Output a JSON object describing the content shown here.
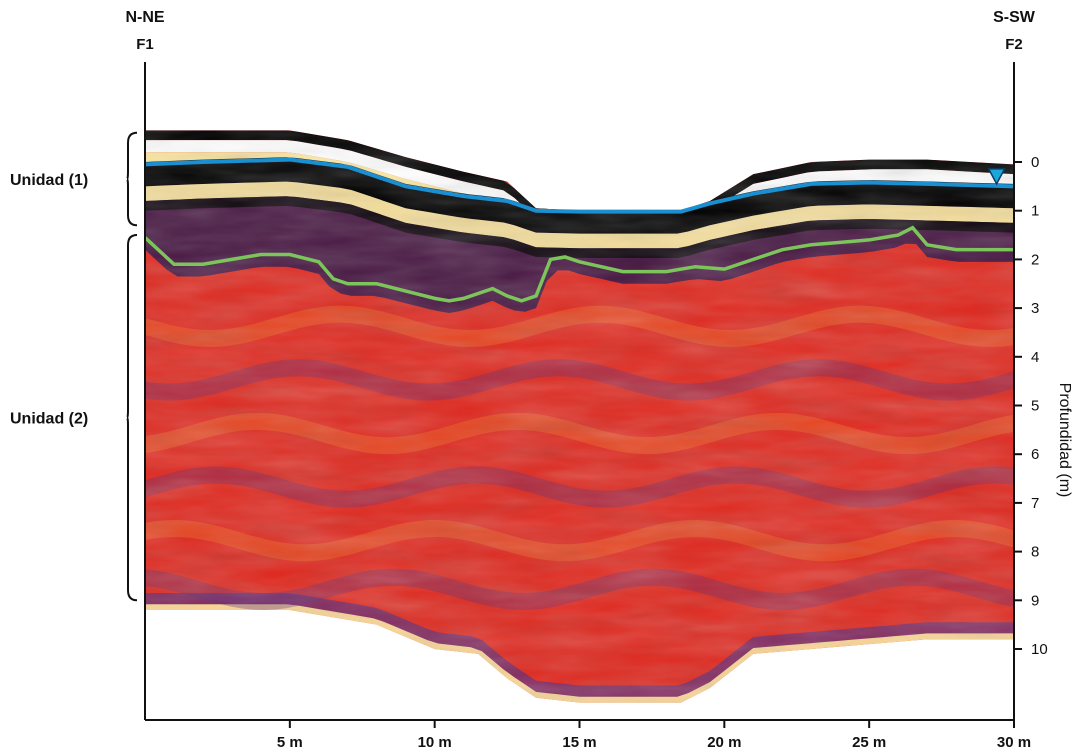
{
  "chart_data": {
    "type": "heatmap",
    "title": "",
    "xlabel": "",
    "ylabel": "Profundidad (m)",
    "direction_left": "N-NE",
    "direction_right": "S-SW",
    "profile_start": "F1",
    "profile_end": "F2",
    "x_unit": "m",
    "xlim": [
      0,
      30
    ],
    "ylim": [
      -0.3,
      10
    ],
    "x_ticks": [
      5,
      10,
      15,
      20,
      25,
      30
    ],
    "x_tick_labels": [
      "5 m",
      "10 m",
      "15 m",
      "20 m",
      "25 m",
      "30 m"
    ],
    "y_ticks": [
      0,
      1,
      2,
      3,
      4,
      5,
      6,
      7,
      8,
      9,
      10
    ],
    "y_tick_labels": [
      "0",
      "1",
      "2",
      "3",
      "4",
      "5",
      "6",
      "7",
      "8",
      "9",
      "10"
    ],
    "units": [
      {
        "name": "Unidad (1)",
        "depth_range": [
          -0.6,
          1.3
        ]
      },
      {
        "name": "Unidad (2)",
        "depth_range": [
          1.5,
          9.0
        ]
      }
    ],
    "colorscale": [
      "#000000",
      "#2a1248",
      "#5a2a7a",
      "#b8203a",
      "#e0281e",
      "#f07a2a",
      "#fde8a0",
      "#ffffff"
    ],
    "series": [
      {
        "type": "surface",
        "color": "#1a8fd1",
        "marker_at": 29.4,
        "x": [
          0,
          2,
          5,
          7,
          9,
          11,
          12.5,
          13.5,
          15,
          17,
          18.5,
          19.5,
          21,
          23,
          25,
          27,
          30
        ],
        "y": [
          0.05,
          0,
          -0.05,
          0.1,
          0.5,
          0.7,
          0.8,
          1.0,
          1.02,
          1.02,
          1.02,
          0.85,
          0.65,
          0.45,
          0.42,
          0.45,
          0.5
        ]
      },
      {
        "type": "unit-boundary",
        "color": "#7cc55a",
        "x": [
          0,
          1,
          2,
          3,
          4,
          5,
          6,
          6.5,
          7,
          8,
          9,
          10,
          10.5,
          11,
          12,
          12.5,
          13,
          13.5,
          14,
          14.5,
          15,
          16.5,
          18,
          19,
          20,
          20.5,
          21,
          22,
          23,
          24,
          25,
          26,
          26.5,
          27,
          28,
          30
        ],
        "y": [
          1.55,
          2.1,
          2.1,
          2.0,
          1.9,
          1.9,
          2.05,
          2.4,
          2.5,
          2.5,
          2.65,
          2.8,
          2.85,
          2.8,
          2.6,
          2.75,
          2.85,
          2.75,
          2.0,
          1.95,
          2.05,
          2.25,
          2.25,
          2.15,
          2.2,
          2.1,
          2.0,
          1.8,
          1.7,
          1.65,
          1.6,
          1.5,
          1.35,
          1.7,
          1.8,
          1.8
        ]
      }
    ],
    "radargram": {
      "top": {
        "x": [
          0,
          5,
          7,
          9,
          11,
          12.5,
          13.5,
          15,
          17,
          18.5,
          19.5,
          21,
          23,
          25,
          27,
          30
        ],
        "y": [
          -0.65,
          -0.65,
          -0.45,
          -0.1,
          0.2,
          0.4,
          0.95,
          1.0,
          1.0,
          1.0,
          0.8,
          0.25,
          0.0,
          -0.05,
          -0.05,
          0.05
        ]
      },
      "bottom": {
        "x": [
          0,
          5,
          8,
          10,
          11.5,
          12.5,
          13.5,
          15,
          17,
          18.5,
          19.5,
          21,
          23,
          25,
          27,
          30
        ],
        "y": [
          9.2,
          9.2,
          9.5,
          10.0,
          10.1,
          10.6,
          11.0,
          11.1,
          11.1,
          11.1,
          10.8,
          10.1,
          10.0,
          9.9,
          9.8,
          9.8
        ]
      }
    }
  }
}
